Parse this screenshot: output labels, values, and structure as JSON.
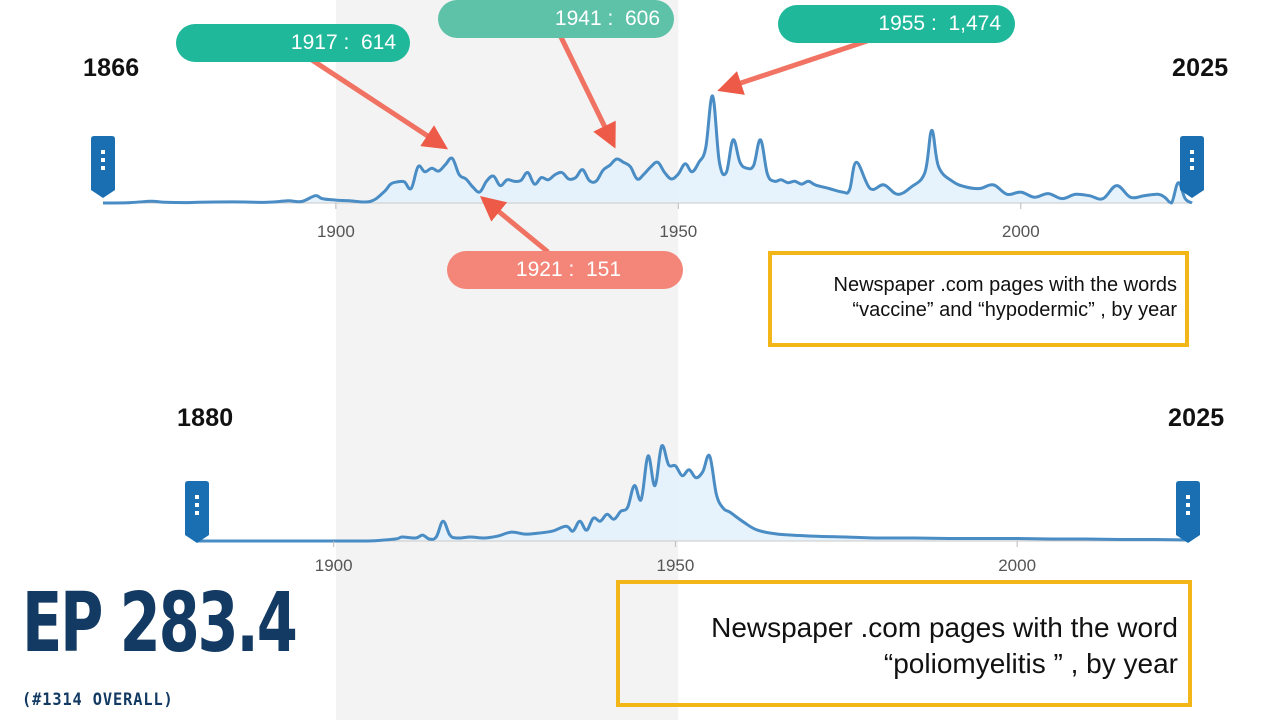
{
  "colors": {
    "line": "#4a8cc4",
    "fill": "#e3f1fb",
    "handle": "#1a6fb3",
    "shade": "#ececec",
    "teal": "#1fb89a",
    "teal_light": "#5ec2a9",
    "salmon": "#f38678",
    "arrow": "#ee5a48",
    "box": "#f2b619",
    "title": "#123a63"
  },
  "chart_data": [
    {
      "type": "area",
      "title": "",
      "start_label": "1866",
      "end_label": "2025",
      "xlim": [
        1866,
        2025
      ],
      "xticks": [
        "1900",
        "1950",
        "2000"
      ],
      "grid": false,
      "x": [
        1866,
        1870,
        1873,
        1875,
        1878,
        1880,
        1885,
        1890,
        1893,
        1895,
        1897,
        1898,
        1900,
        1902,
        1905,
        1907,
        1908,
        1909,
        1910,
        1911,
        1912,
        1913,
        1914,
        1915,
        1916,
        1917,
        1918,
        1919,
        1920,
        1921,
        1922,
        1923,
        1924,
        1925,
        1926,
        1927,
        1928,
        1929,
        1930,
        1931,
        1932,
        1933,
        1934,
        1935,
        1936,
        1937,
        1938,
        1939,
        1940,
        1941,
        1942,
        1943,
        1944,
        1945,
        1946,
        1947,
        1948,
        1949,
        1950,
        1951,
        1952,
        1953,
        1954,
        1955,
        1956,
        1957,
        1958,
        1959,
        1960,
        1961,
        1962,
        1963,
        1964,
        1965,
        1966,
        1967,
        1968,
        1969,
        1970,
        1972,
        1974,
        1975,
        1976,
        1978,
        1980,
        1982,
        1984,
        1986,
        1987,
        1988,
        1990,
        1992,
        1994,
        1996,
        1998,
        2000,
        2002,
        2004,
        2006,
        2008,
        2010,
        2012,
        2014,
        2016,
        2018,
        2020,
        2021,
        2022,
        2023,
        2024,
        2025
      ],
      "y": [
        0,
        5,
        25,
        10,
        5,
        10,
        15,
        10,
        30,
        20,
        100,
        60,
        40,
        30,
        20,
        150,
        260,
        290,
        290,
        200,
        500,
        430,
        480,
        440,
        530,
        614,
        390,
        330,
        220,
        151,
        300,
        370,
        240,
        320,
        300,
        310,
        420,
        260,
        350,
        320,
        390,
        420,
        330,
        350,
        460,
        310,
        300,
        450,
        520,
        606,
        560,
        500,
        330,
        400,
        500,
        560,
        420,
        330,
        400,
        540,
        430,
        560,
        760,
        1474,
        560,
        420,
        870,
        560,
        480,
        520,
        870,
        400,
        300,
        320,
        280,
        300,
        260,
        300,
        250,
        200,
        150,
        180,
        560,
        200,
        250,
        120,
        220,
        420,
        1000,
        500,
        300,
        220,
        200,
        250,
        120,
        150,
        80,
        130,
        60,
        120,
        100,
        60,
        240,
        80,
        100,
        120,
        80,
        0,
        280,
        60,
        0
      ],
      "callouts": [
        {
          "text": "1917 :  614",
          "x": 1917,
          "y": 614,
          "color": "teal"
        },
        {
          "text": "1941 :  606",
          "x": 1941,
          "y": 606,
          "color": "teal_light"
        },
        {
          "text": "1955 :  1,474",
          "x": 1955,
          "y": 1474,
          "color": "teal"
        },
        {
          "text": "1921 :  151",
          "x": 1921,
          "y": 151,
          "color": "salmon"
        }
      ],
      "caption": [
        "Newspaper .com pages with the  words",
        "“vaccine” and “hypodermic” , by year"
      ]
    },
    {
      "type": "area",
      "title": "",
      "start_label": "1880",
      "end_label": "2025",
      "xlim": [
        1880,
        2025
      ],
      "xticks": [
        "1900",
        "1950",
        "2000"
      ],
      "grid": false,
      "x": [
        1880,
        1890,
        1900,
        1905,
        1909,
        1910,
        1912,
        1913,
        1914,
        1915,
        1916,
        1917,
        1918,
        1920,
        1922,
        1924,
        1926,
        1928,
        1930,
        1932,
        1934,
        1935,
        1936,
        1937,
        1938,
        1939,
        1940,
        1941,
        1942,
        1943,
        1944,
        1945,
        1946,
        1947,
        1948,
        1949,
        1950,
        1951,
        1952,
        1953,
        1954,
        1955,
        1956,
        1957,
        1958,
        1960,
        1962,
        1965,
        1970,
        1975,
        1980,
        1985,
        1990,
        1995,
        2000,
        2005,
        2010,
        2015,
        2020,
        2025
      ],
      "y": [
        0,
        0,
        0,
        0,
        20,
        40,
        30,
        60,
        20,
        40,
        200,
        60,
        30,
        40,
        30,
        50,
        90,
        70,
        80,
        100,
        150,
        100,
        200,
        110,
        230,
        200,
        270,
        220,
        300,
        340,
        560,
        420,
        860,
        560,
        960,
        770,
        760,
        660,
        720,
        640,
        700,
        860,
        470,
        330,
        290,
        190,
        110,
        70,
        50,
        40,
        30,
        30,
        25,
        25,
        25,
        20,
        20,
        15,
        15,
        10
      ],
      "caption": [
        "Newspaper .com pages with the  word",
        "“poliomyelitis ” , by year"
      ]
    }
  ],
  "shade_range": [
    1900,
    1950
  ],
  "episode": {
    "title": "EP 283.4",
    "subtitle": "(#1314 OVERALL)"
  }
}
